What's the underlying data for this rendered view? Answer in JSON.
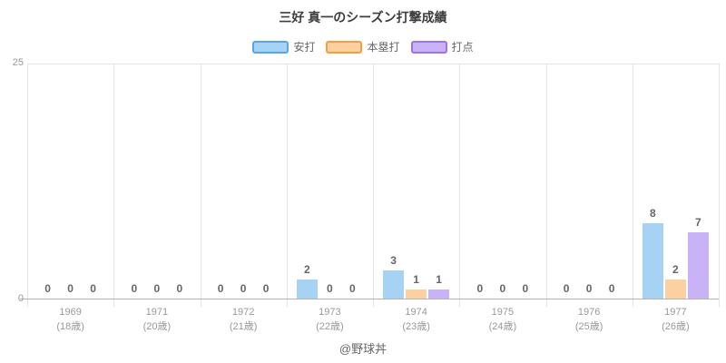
{
  "footer": "@野球丼",
  "chart_data": {
    "type": "bar",
    "title": "三好 真一のシーズン打撃成績",
    "categories": [
      "1969",
      "1971",
      "1972",
      "1973",
      "1974",
      "1975",
      "1976",
      "1977"
    ],
    "category_sublabels": [
      "(18歳)",
      "(20歳)",
      "(21歳)",
      "(22歳)",
      "(23歳)",
      "(24歳)",
      "(25歳)",
      "(26歳)"
    ],
    "series": [
      {
        "name": "安打",
        "fill": "#a6d3f4",
        "border": "#55a6ea",
        "values": [
          0,
          0,
          0,
          2,
          3,
          0,
          0,
          8
        ]
      },
      {
        "name": "本塁打",
        "fill": "#fcd0a0",
        "border": "#f89c3e",
        "values": [
          0,
          0,
          0,
          0,
          1,
          0,
          0,
          2
        ]
      },
      {
        "name": "打点",
        "fill": "#c9b2f6",
        "border": "#9c72f0",
        "values": [
          0,
          0,
          0,
          0,
          1,
          0,
          0,
          7
        ]
      }
    ],
    "ylim": [
      0,
      25
    ],
    "yticks": [
      0,
      25
    ],
    "legend_position": "top",
    "grid": "vertical-category-boundaries",
    "xlabel": "",
    "ylabel": ""
  }
}
